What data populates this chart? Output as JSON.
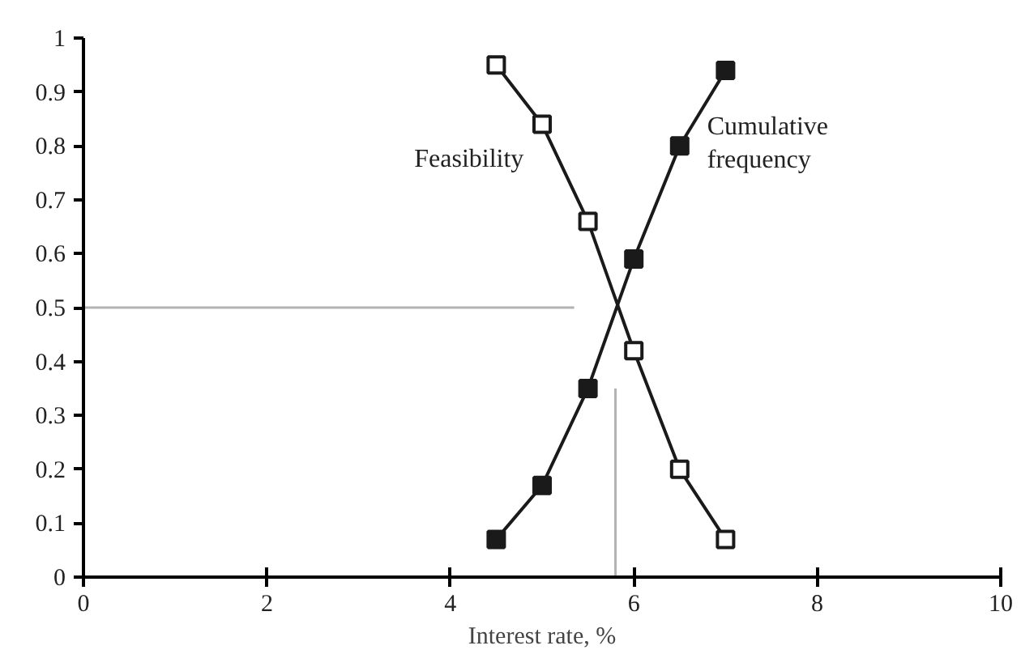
{
  "chart_data": {
    "type": "line",
    "xlabel": "Interest rate, %",
    "xlim": [
      0,
      10
    ],
    "ylim": [
      0,
      1
    ],
    "xticks": [
      0,
      2,
      4,
      6,
      8,
      10
    ],
    "yticks": [
      0,
      0.1,
      0.2,
      0.3,
      0.4,
      0.5,
      0.6,
      0.7,
      0.8,
      0.9,
      1
    ],
    "grid": false,
    "legend": false,
    "line_style": "solid",
    "x": [
      4.5,
      5,
      5.5,
      6,
      6.5,
      7
    ],
    "series": [
      {
        "name": "Feasibility",
        "color": "#1a1a1a",
        "marker": "square",
        "colors": [
          "#ffffff",
          "#ffffff",
          "#ffffff",
          "#ffffff",
          "#ffffff",
          "#ffffff"
        ],
        "values": [
          0.95,
          0.84,
          0.66,
          0.42,
          0.2,
          0.07
        ]
      },
      {
        "name": "Cumulative frequency",
        "color": "#1a1a1a",
        "marker": "square",
        "colors": [
          "#1a1a1a",
          "#1a1a1a",
          "#1a1a1a",
          "#1a1a1a",
          "#1a1a1a",
          "#1a1a1a"
        ],
        "values": [
          0.07,
          0.17,
          0.35,
          0.59,
          0.8,
          0.94
        ]
      },
      {
        "color": "#b3b3b3",
        "marker": "none",
        "x": [
          0,
          5.35
        ],
        "values": [
          0.5,
          0.5
        ]
      },
      {
        "color": "#b3b3b3",
        "marker": "none",
        "x": [
          5.8,
          5.8
        ],
        "values": [
          0,
          0.35
        ]
      }
    ]
  }
}
